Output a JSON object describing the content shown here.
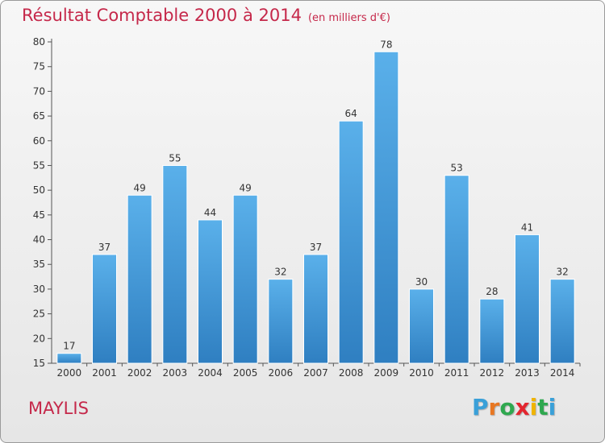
{
  "title": "Résultat Comptable 2000 à 2014",
  "subtitle": "(en milliers d'€)",
  "location": "MAYLIS",
  "logo": {
    "letters": [
      "P",
      "r",
      "o",
      "x",
      "i",
      "t",
      "i"
    ],
    "colors": [
      "#3aa0d8",
      "#e87722",
      "#2fa84f",
      "#e3262f",
      "#f0b400",
      "#2fa84f",
      "#3aa0d8"
    ]
  },
  "colors": {
    "title": "#c5284a",
    "bar_top": "#5ab0ea",
    "bar_bottom": "#2f7fc1",
    "axis": "#555555",
    "grid": "#ffffff"
  },
  "chart_data": {
    "type": "bar",
    "title": "Résultat Comptable 2000 à 2014",
    "xlabel": "",
    "ylabel": "",
    "categories": [
      "2000",
      "2001",
      "2002",
      "2003",
      "2004",
      "2005",
      "2006",
      "2007",
      "2008",
      "2009",
      "2010",
      "2011",
      "2012",
      "2013",
      "2014"
    ],
    "values": [
      17,
      37,
      49,
      55,
      44,
      49,
      32,
      37,
      64,
      78,
      30,
      53,
      28,
      41,
      32
    ],
    "ylim": [
      15,
      80
    ],
    "yticks": [
      15,
      20,
      25,
      30,
      35,
      40,
      45,
      50,
      55,
      60,
      65,
      70,
      75,
      80
    ],
    "grid": false
  }
}
